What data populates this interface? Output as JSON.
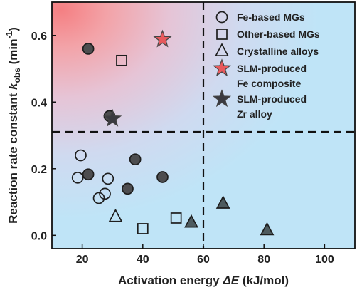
{
  "chart_data": {
    "type": "scatter",
    "title": "",
    "xlabel": "Activation energy ΔE (kJ/mol)",
    "xlabel_parts": {
      "pre": "Activation energy ",
      "sym": "ΔE",
      "post": " (kJ/mol)"
    },
    "ylabel": "Reaction rate constant k_obs (min⁻¹)",
    "ylabel_parts": {
      "pre": "Reaction rate constant ",
      "sym": "k",
      "sub": "obs",
      "unit_open": " (min",
      "sup": "-1",
      "unit_close": ")"
    },
    "xlim": [
      10,
      110
    ],
    "ylim": [
      -0.04,
      0.7
    ],
    "xticks": [
      20,
      40,
      60,
      80,
      100
    ],
    "yticks": [
      0.0,
      0.2,
      0.4,
      0.6
    ],
    "ytick_labels": [
      "0.0",
      "0.2",
      "0.4",
      "0.6"
    ],
    "grid": false,
    "reference_lines": {
      "x": 60,
      "y": 0.3,
      "style": "dashed"
    },
    "background": "gradient: red at top-left to light blue",
    "legend_position": "top-right",
    "legend": [
      {
        "label": "Fe-based MGs",
        "marker": "circle",
        "fill": "none"
      },
      {
        "label": "Other-based MGs",
        "marker": "square",
        "fill": "none"
      },
      {
        "label": "Crystalline alloys",
        "marker": "triangle",
        "fill": "none"
      },
      {
        "label": "SLM-produced",
        "label2": "Fe composite",
        "marker": "star",
        "fill": "#e8595c"
      },
      {
        "label": "SLM-produced",
        "label2": "Zr alloy",
        "marker": "star",
        "fill": "#3a3a40"
      }
    ],
    "series": [
      {
        "name": "Fe-based MGs",
        "marker": "circle",
        "filled": false,
        "points": [
          [
            18.5,
            0.173
          ],
          [
            19.5,
            0.24
          ],
          [
            25.5,
            0.112
          ],
          [
            27.5,
            0.125
          ],
          [
            28.5,
            0.17
          ]
        ]
      },
      {
        "name": "Fe-based MGs",
        "marker": "circle",
        "filled": true,
        "points": [
          [
            22.0,
            0.56
          ],
          [
            22.0,
            0.183
          ],
          [
            29.0,
            0.358
          ],
          [
            35.0,
            0.14
          ],
          [
            37.5,
            0.228
          ],
          [
            46.5,
            0.175
          ]
        ]
      },
      {
        "name": "Other-based MGs",
        "marker": "square",
        "filled": false,
        "points": [
          [
            33.0,
            0.525
          ],
          [
            40.0,
            0.02
          ],
          [
            51.0,
            0.052
          ]
        ]
      },
      {
        "name": "Crystalline alloys",
        "marker": "triangle",
        "filled": false,
        "points": [
          [
            31.0,
            0.055
          ]
        ]
      },
      {
        "name": "Crystalline alloys",
        "marker": "triangle",
        "filled": true,
        "points": [
          [
            56.0,
            0.038
          ],
          [
            66.5,
            0.095
          ],
          [
            81.0,
            0.015
          ]
        ]
      },
      {
        "name": "SLM-produced Fe composite",
        "marker": "star",
        "filled": true,
        "points": [
          [
            46.5,
            0.588
          ]
        ]
      },
      {
        "name": "SLM-produced Zr alloy",
        "marker": "star",
        "filled": true,
        "points": [
          [
            30.0,
            0.35
          ]
        ]
      }
    ],
    "colors": {
      "hot": "#f47f82",
      "cool": "#bfe4f7",
      "marker_filled": "#4d4d4f",
      "marker_outline": "#1e1e1e",
      "star_fe": "#e8595c",
      "star_zr": "#3a3a40",
      "triangle_filled": "#4e5b5f"
    }
  }
}
